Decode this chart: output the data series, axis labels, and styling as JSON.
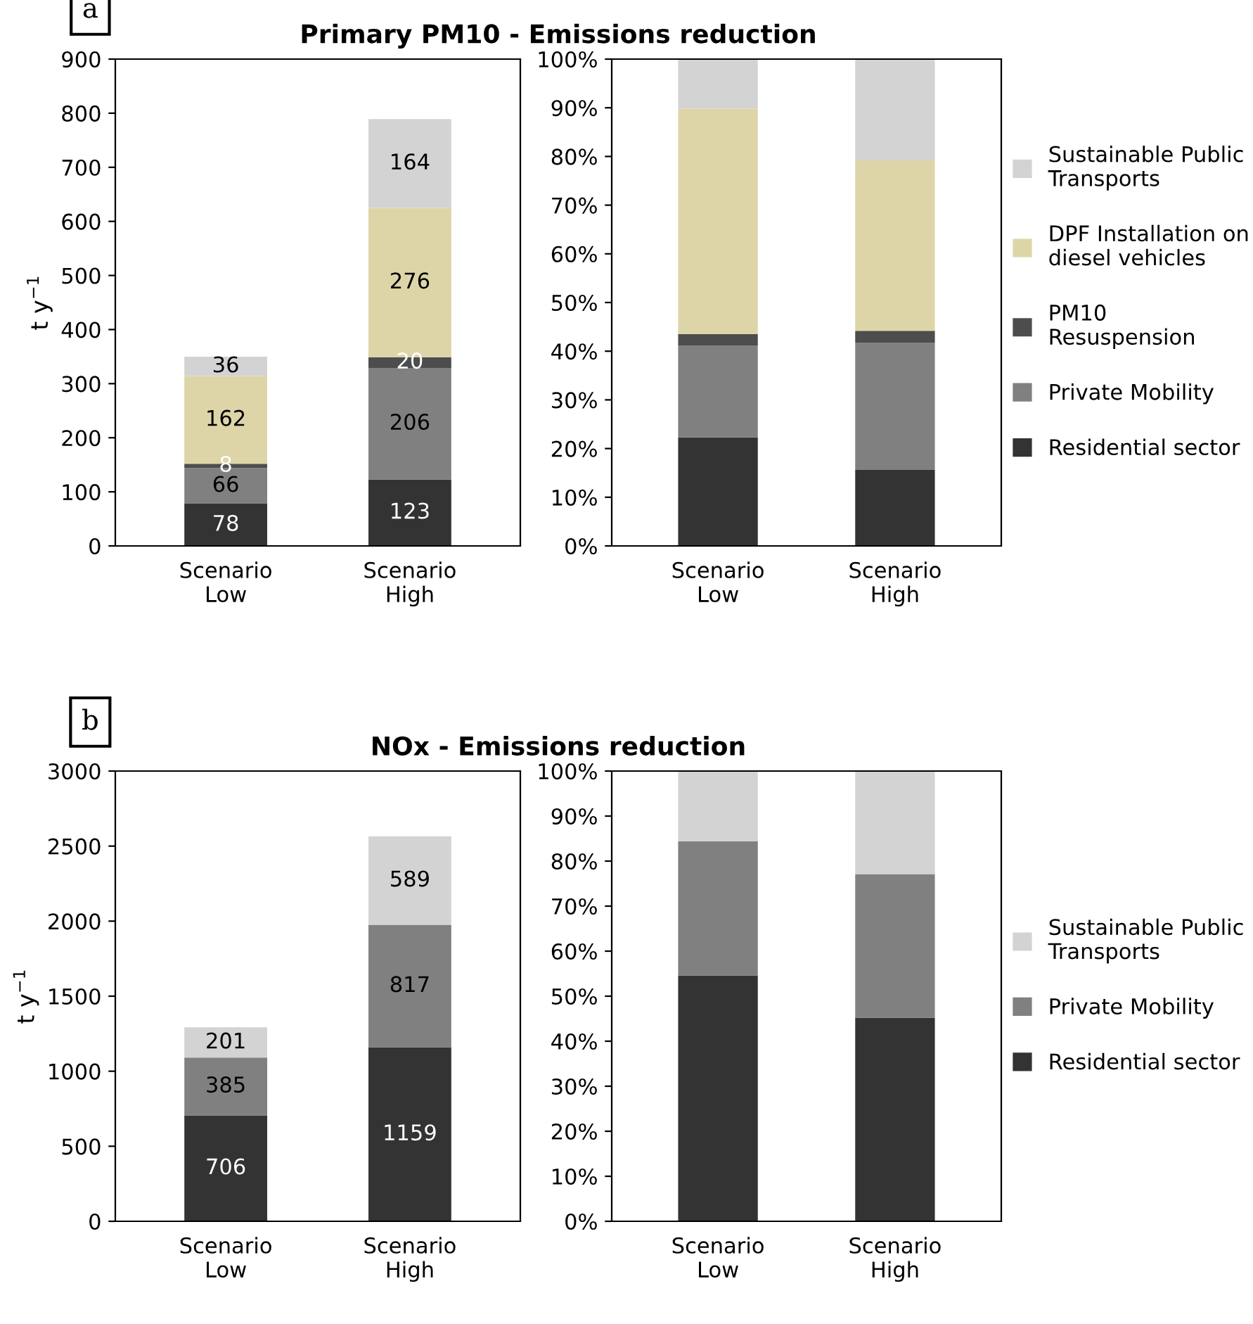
{
  "chart_data": [
    {
      "type": "bar",
      "stacked": true,
      "title": "Primary PM10 - Emissions reduction",
      "ylabel": "t y$^{−1}$",
      "annotations": [
        "a"
      ],
      "categories": [
        "Scenario\nLow",
        "Scenario\nHigh"
      ],
      "ylim": [
        0,
        900
      ],
      "yticks": [
        0,
        100,
        200,
        300,
        400,
        500,
        600,
        700,
        800,
        900
      ],
      "data_labels": true,
      "series": [
        {
          "color": "#333333",
          "values": [
            78,
            123
          ]
        },
        {
          "color": "#808080",
          "values": [
            66,
            206
          ]
        },
        {
          "color": "#4d4d4d",
          "values": [
            8,
            20
          ]
        },
        {
          "color": "#ddd5a8",
          "values": [
            162,
            276
          ]
        },
        {
          "color": "#d3d3d3",
          "values": [
            36,
            164
          ]
        }
      ]
    },
    {
      "type": "bar",
      "stacked": true,
      "categories": [
        "Scenario\nLow",
        "Scenario\nHigh"
      ],
      "ylim": [
        0,
        100
      ],
      "yticks": [
        {
          "value": 0,
          "label": "0%"
        },
        {
          "value": 10,
          "label": "10%"
        },
        {
          "value": 20,
          "label": "20%"
        },
        {
          "value": 30,
          "label": "30%"
        },
        {
          "value": 40,
          "label": "40%"
        },
        {
          "value": 50,
          "label": "50%"
        },
        {
          "value": 60,
          "label": "60%"
        },
        {
          "value": 70,
          "label": "70%"
        },
        {
          "value": 80,
          "label": "80%"
        },
        {
          "value": 90,
          "label": "90%"
        },
        {
          "value": 100,
          "label": "100%"
        }
      ],
      "legend": "right",
      "series": [
        {
          "name": "Residential sector",
          "color": "#333333",
          "values": [
            22.3,
            15.6
          ]
        },
        {
          "name": "Private Mobility",
          "color": "#808080",
          "values": [
            18.9,
            26.1
          ]
        },
        {
          "name": "PM10 Resuspension",
          "color": "#4d4d4d",
          "values": [
            2.3,
            2.5
          ]
        },
        {
          "name": "DPF Installation on diesel vehicles",
          "color": "#ddd5a8",
          "values": [
            46.3,
            35.0
          ]
        },
        {
          "name": "Sustainable Public Transports",
          "color": "#d3d3d3",
          "values": [
            10.2,
            20.8
          ]
        }
      ]
    },
    {
      "type": "bar",
      "stacked": true,
      "title": "NOx - Emissions reduction",
      "ylabel": "t y$^{−1}$",
      "annotations": [
        "b"
      ],
      "categories": [
        "Scenario\nLow",
        "Scenario\nHigh"
      ],
      "ylim": [
        0,
        3000
      ],
      "yticks": [
        0,
        500,
        1000,
        1500,
        2000,
        2500,
        3000
      ],
      "data_labels": true,
      "series": [
        {
          "color": "#333333",
          "values": [
            706,
            1159
          ]
        },
        {
          "color": "#808080",
          "values": [
            385,
            817
          ]
        },
        {
          "color": "#d3d3d3",
          "values": [
            201,
            589
          ]
        }
      ]
    },
    {
      "type": "bar",
      "stacked": true,
      "categories": [
        "Scenario\nLow",
        "Scenario\nHigh"
      ],
      "ylim": [
        0,
        100
      ],
      "yticks": [
        {
          "value": 0,
          "label": "0%"
        },
        {
          "value": 10,
          "label": "10%"
        },
        {
          "value": 20,
          "label": "20%"
        },
        {
          "value": 30,
          "label": "30%"
        },
        {
          "value": 40,
          "label": "40%"
        },
        {
          "value": 50,
          "label": "50%"
        },
        {
          "value": 60,
          "label": "60%"
        },
        {
          "value": 70,
          "label": "70%"
        },
        {
          "value": 80,
          "label": "80%"
        },
        {
          "value": 90,
          "label": "90%"
        },
        {
          "value": 100,
          "label": "100%"
        }
      ],
      "legend": "right",
      "series": [
        {
          "name": "Residential sector",
          "color": "#333333",
          "values": [
            54.6,
            45.2
          ]
        },
        {
          "name": "Private Mobility",
          "color": "#808080",
          "values": [
            29.8,
            31.9
          ]
        },
        {
          "name": "Sustainable Public Transports",
          "color": "#d3d3d3",
          "values": [
            15.6,
            22.9
          ]
        }
      ]
    }
  ]
}
